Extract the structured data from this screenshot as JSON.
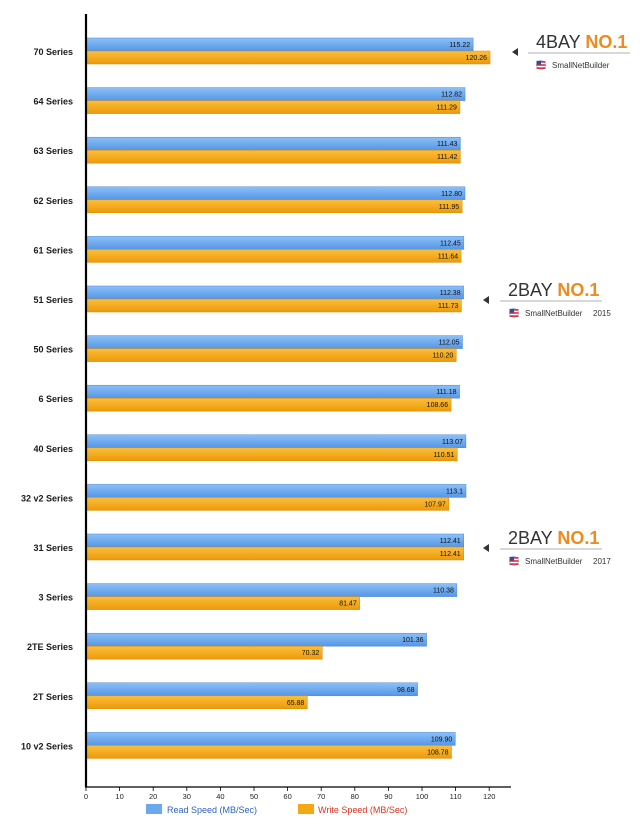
{
  "chart_data": {
    "type": "bar",
    "orientation": "horizontal",
    "categories": [
      "70 Series",
      "64 Series",
      "63 Series",
      "62 Series",
      "61 Series",
      "51 Series",
      "50 Series",
      "6 Series",
      "40 Series",
      "32 v2 Series",
      "31 Series",
      "3 Series",
      "2TE Series",
      "2T Series",
      "10 v2 Series"
    ],
    "series": [
      {
        "name": "Read Speed (MB/Sec)",
        "color": "#6aa8f0",
        "values": [
          115.22,
          112.82,
          111.43,
          112.8,
          112.45,
          112.38,
          112.05,
          111.18,
          113.07,
          113.1,
          112.41,
          110.38,
          101.36,
          98.68,
          109.9
        ],
        "labels": [
          "115.22",
          "112.82",
          "111.43",
          "112.80",
          "112.45",
          "112.38",
          "112.05",
          "111.18",
          "113.07",
          "113.1",
          "112.41",
          "110.38",
          "101.36",
          "98.68",
          "109.90"
        ]
      },
      {
        "name": "Write Speed (MB/Sec)",
        "color": "#f5a714",
        "values": [
          120.26,
          111.29,
          111.42,
          111.95,
          111.64,
          111.73,
          110.2,
          108.66,
          110.51,
          107.97,
          112.41,
          81.47,
          70.32,
          65.88,
          108.78
        ],
        "labels": [
          "120.26",
          "111.29",
          "111.42",
          "111.95",
          "111.64",
          "111.73",
          "110.20",
          "108.66",
          "110.51",
          "107.97",
          "112.41",
          "81.47",
          "70.32",
          "65.88",
          "108.78"
        ]
      }
    ],
    "xlim": [
      0,
      125
    ],
    "xticks": [
      0,
      10,
      20,
      30,
      40,
      50,
      60,
      70,
      80,
      90,
      100,
      110,
      120
    ],
    "legend_position": "bottom",
    "legend_text_colors": [
      "#2a63c9",
      "#e0301e"
    ],
    "annotations": [
      {
        "category": "70 Series",
        "prefix": "4BAY ",
        "highlight": "NO.1",
        "source": "SmallNetBuilder",
        "year": ""
      },
      {
        "category": "51 Series",
        "prefix": "2BAY ",
        "highlight": "NO.1",
        "source": "SmallNetBuilder",
        "year": "2015"
      },
      {
        "category": "31 Series",
        "prefix": "2BAY ",
        "highlight": "NO.1",
        "source": "SmallNetBuilder",
        "year": "2017"
      }
    ],
    "highlight_color": "#f08a1c"
  }
}
